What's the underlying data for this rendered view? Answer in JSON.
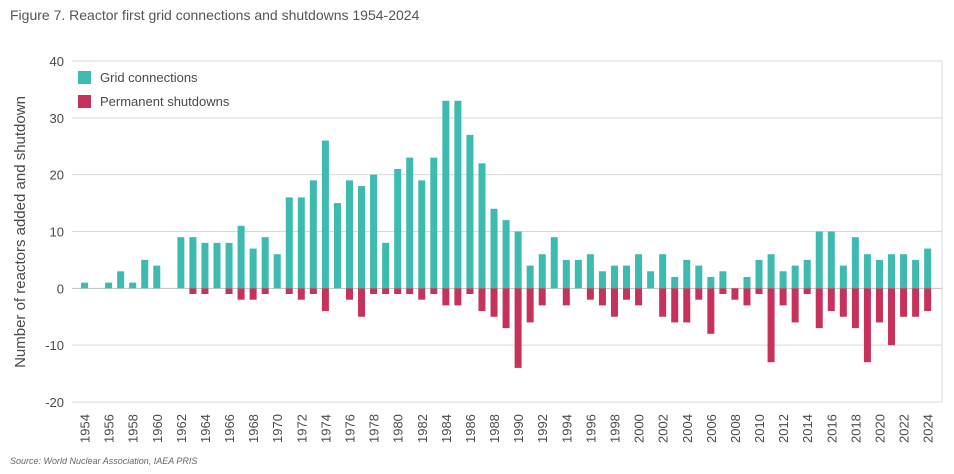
{
  "title": "Figure 7. Reactor first grid connections and shutdowns 1954-2024",
  "source": "Source: World Nuclear Association, IAEA PRIS",
  "colors": {
    "connections": "#3dbbb0",
    "shutdowns": "#c7325a",
    "grid": "#d9d9d9",
    "axis": "#bfbfbf"
  },
  "chart_data": {
    "type": "bar",
    "title": "Figure 7. Reactor first grid connections and shutdowns 1954-2024",
    "xlabel": "",
    "ylabel": "Number of reactors added and shutdown",
    "ylim": [
      -20,
      40
    ],
    "yticks": [
      40,
      30,
      20,
      10,
      0,
      -10,
      -20
    ],
    "grid": true,
    "legend": "top-left",
    "categories": [
      1954,
      1955,
      1956,
      1957,
      1958,
      1959,
      1960,
      1961,
      1962,
      1963,
      1964,
      1965,
      1966,
      1967,
      1968,
      1969,
      1970,
      1971,
      1972,
      1973,
      1974,
      1975,
      1976,
      1977,
      1978,
      1979,
      1980,
      1981,
      1982,
      1983,
      1984,
      1985,
      1986,
      1987,
      1988,
      1989,
      1990,
      1991,
      1992,
      1993,
      1994,
      1995,
      1996,
      1997,
      1998,
      1999,
      2000,
      2001,
      2002,
      2003,
      2004,
      2005,
      2006,
      2007,
      2008,
      2009,
      2010,
      2011,
      2012,
      2013,
      2014,
      2015,
      2016,
      2017,
      2018,
      2019,
      2020,
      2021,
      2022,
      2023,
      2024
    ],
    "xtick_labels": [
      "1954",
      "1956",
      "1958",
      "1960",
      "1962",
      "1964",
      "1966",
      "1968",
      "1970",
      "1972",
      "1974",
      "1976",
      "1978",
      "1980",
      "1982",
      "1984",
      "1986",
      "1988",
      "1990",
      "1992",
      "1994",
      "1996",
      "1998",
      "2000",
      "2002",
      "2004",
      "2006",
      "2008",
      "2010",
      "2012",
      "2014",
      "2016",
      "2018",
      "2020",
      "2022",
      "2024"
    ],
    "series": [
      {
        "name": "Grid connections",
        "values": [
          1,
          0,
          1,
          3,
          1,
          5,
          4,
          0,
          9,
          9,
          8,
          8,
          8,
          11,
          7,
          9,
          6,
          16,
          16,
          19,
          26,
          15,
          19,
          18,
          20,
          8,
          21,
          23,
          19,
          23,
          33,
          33,
          27,
          22,
          14,
          12,
          10,
          4,
          6,
          9,
          5,
          5,
          6,
          3,
          4,
          4,
          6,
          3,
          6,
          2,
          5,
          4,
          2,
          3,
          0,
          2,
          5,
          6,
          3,
          4,
          5,
          10,
          10,
          4,
          9,
          6,
          5,
          6,
          6,
          5,
          7
        ]
      },
      {
        "name": "Permanent shutdowns",
        "values": [
          0,
          0,
          0,
          0,
          0,
          0,
          0,
          0,
          0,
          -1,
          -1,
          0,
          -1,
          -2,
          -2,
          -1,
          0,
          -1,
          -2,
          -1,
          -4,
          0,
          -2,
          -5,
          -1,
          -1,
          -1,
          -1,
          -2,
          -1,
          -3,
          -3,
          -1,
          -4,
          -5,
          -7,
          -14,
          -6,
          -3,
          0,
          -3,
          0,
          -2,
          -3,
          -5,
          -2,
          -3,
          0,
          -5,
          -6,
          -6,
          -2,
          -8,
          -1,
          -2,
          -3,
          -1,
          -13,
          -3,
          -6,
          -1,
          -7,
          -4,
          -5,
          -7,
          -13,
          -6,
          -10,
          -5,
          -5,
          -4
        ]
      }
    ]
  }
}
